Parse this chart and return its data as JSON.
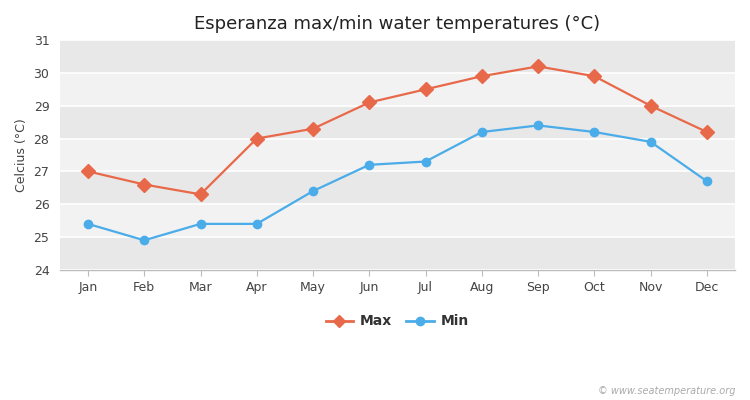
{
  "title": "Esperanza max/min water temperatures (°C)",
  "ylabel": "Celcius (°C)",
  "months": [
    "Jan",
    "Feb",
    "Mar",
    "Apr",
    "May",
    "Jun",
    "Jul",
    "Aug",
    "Sep",
    "Oct",
    "Nov",
    "Dec"
  ],
  "max_values": [
    27.0,
    26.6,
    26.3,
    28.0,
    28.3,
    29.1,
    29.5,
    29.9,
    30.2,
    29.9,
    29.0,
    28.2
  ],
  "min_values": [
    25.4,
    24.9,
    25.4,
    25.4,
    26.4,
    27.2,
    27.3,
    28.2,
    28.4,
    28.2,
    27.9,
    26.7
  ],
  "max_color": "#e8694a",
  "min_color": "#4aace8",
  "background_color": "#ffffff",
  "plot_bg_color": "#f2f2f2",
  "stripe_dark": "#e8e8e8",
  "stripe_light": "#f2f2f2",
  "ylim": [
    24,
    31
  ],
  "yticks": [
    24,
    25,
    26,
    27,
    28,
    29,
    30,
    31
  ],
  "legend_labels": [
    "Max",
    "Min"
  ],
  "watermark": "© www.seatemperature.org",
  "title_fontsize": 13,
  "label_fontsize": 9,
  "tick_fontsize": 9,
  "marker_size_max": 7,
  "marker_size_min": 7,
  "line_width": 1.6
}
